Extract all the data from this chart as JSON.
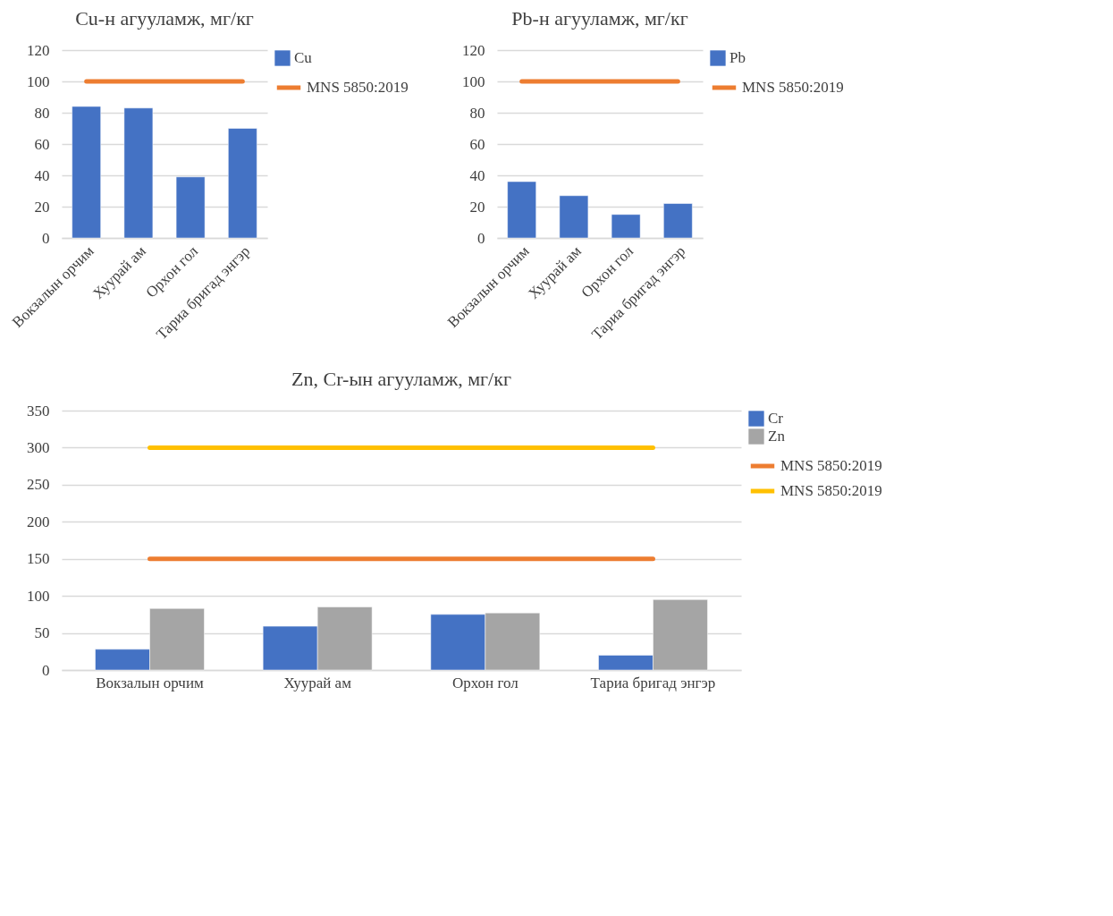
{
  "chart_data": [
    {
      "type": "bar",
      "title": "Cu-н агууламж, мг/кг",
      "categories": [
        "Вокзалын орчим",
        "Хуурай ам",
        "Орхон гол",
        "Тариа бригад энгэр"
      ],
      "ylim": [
        0,
        120
      ],
      "yticks": [
        0,
        20,
        40,
        60,
        80,
        100,
        120
      ],
      "grid": "y",
      "legend": "right",
      "series": [
        {
          "name": "Cu",
          "color": "#4472c4",
          "values": [
            84,
            83,
            39,
            70
          ]
        },
        {
          "name": "MNS 5850:2019",
          "type": "line",
          "color": "#ed7d31",
          "values": [
            100,
            100,
            100,
            100
          ]
        }
      ]
    },
    {
      "type": "bar",
      "title": "Pb-н агууламж, мг/кг",
      "categories": [
        "Вокзалын орчим",
        "Хуурай ам",
        "Орхон гол",
        "Тариа бригад энгэр"
      ],
      "ylim": [
        0,
        120
      ],
      "yticks": [
        0,
        20,
        40,
        60,
        80,
        100,
        120
      ],
      "grid": "y",
      "legend": "right",
      "series": [
        {
          "name": "Pb",
          "color": "#4472c4",
          "values": [
            36,
            27,
            15,
            22
          ]
        },
        {
          "name": "MNS 5850:2019",
          "type": "line",
          "color": "#ed7d31",
          "values": [
            100,
            100,
            100,
            100
          ]
        }
      ]
    },
    {
      "type": "bar",
      "title": "Zn, Cr-ын агууламж, мг/кг",
      "categories": [
        "Вокзалын орчим",
        "Хуурай ам",
        "Орхон гол",
        "Тариа бригад энгэр"
      ],
      "ylim": [
        0,
        350
      ],
      "yticks": [
        0,
        50,
        100,
        150,
        200,
        250,
        300,
        350
      ],
      "grid": "y",
      "legend": "right",
      "series": [
        {
          "name": "Cr",
          "color": "#4472c4",
          "values": [
            28,
            59,
            75,
            20
          ]
        },
        {
          "name": "Zn",
          "color": "#a5a5a5",
          "values": [
            83,
            85,
            77,
            95
          ]
        },
        {
          "name": "MNS 5850:2019",
          "type": "line",
          "color": "#ed7d31",
          "values": [
            150,
            150,
            150,
            150
          ]
        },
        {
          "name": "MNS 5850:2019",
          "type": "line",
          "color": "#ffc000",
          "values": [
            300,
            300,
            300,
            300
          ]
        }
      ]
    }
  ]
}
